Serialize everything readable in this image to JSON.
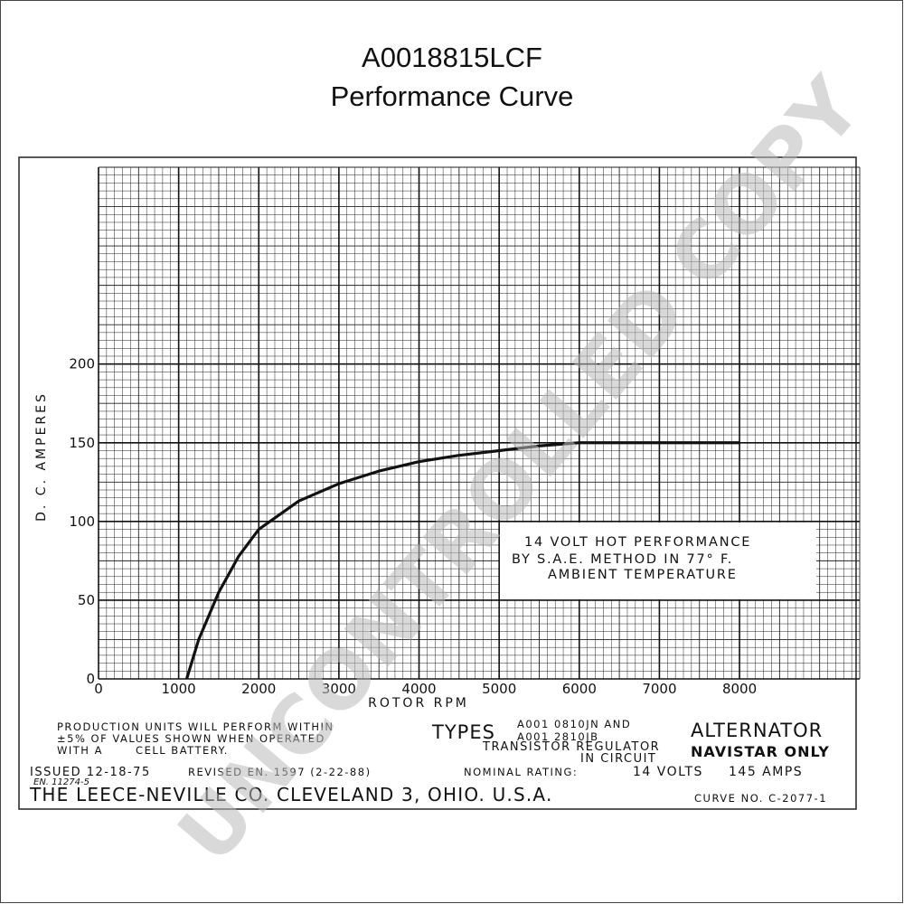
{
  "chart_data": {
    "type": "line",
    "title": "A0018815LCF",
    "subtitle": "Performance Curve",
    "y_label": "D. C. AMPERES",
    "x_label": "ROTOR RPM",
    "x": [
      1100,
      1250,
      1500,
      1750,
      2000,
      2500,
      3000,
      3500,
      4000,
      4500,
      5000,
      5500,
      6000,
      7000,
      8000
    ],
    "values": [
      0,
      25,
      55,
      78,
      95,
      113,
      124,
      132,
      138,
      142,
      145,
      148,
      150,
      150,
      150
    ],
    "color": "#111111",
    "xlim": [
      0,
      9500
    ],
    "xticks": [
      0,
      1000,
      2000,
      3000,
      4000,
      5000,
      6000,
      7000,
      8000
    ],
    "ylim": [
      0,
      325
    ],
    "yticks": [
      0,
      50,
      100,
      150,
      200
    ],
    "grid": true,
    "annotation": [
      "14 VOLT HOT PERFORMANCE",
      "BY S.A.E. METHOD IN 77° F.",
      "AMBIENT TEMPERATURE"
    ],
    "footer": {
      "production": [
        "PRODUCTION UNITS WILL PERFORM WITHIN",
        "±5% OF VALUES SHOWN WHEN OPERATED",
        "WITH A       CELL BATTERY."
      ],
      "types": "TYPES",
      "models": [
        "A001 0810JN AND",
        "A001 2810JB"
      ],
      "regulator": [
        "TRANSISTOR REGULATOR",
        "IN CIRCUIT"
      ],
      "product": [
        "ALTERNATOR",
        "NAVISTAR ONLY"
      ],
      "issued": [
        "ISSUED 12-18-75",
        "EN. 11274-5"
      ],
      "revised": "REVISED EN. 1597 (2-22-88)",
      "rating_label": "NOMINAL RATING:",
      "volts": "14 VOLTS",
      "amps": "145 AMPS",
      "company": "THE LEECE-NEVILLE CO. CLEVELAND 3, OHIO. U.S.A.",
      "curve_no": "CURVE NO. C-2077-1"
    },
    "watermark": "UNCONTROLLED COPY"
  }
}
